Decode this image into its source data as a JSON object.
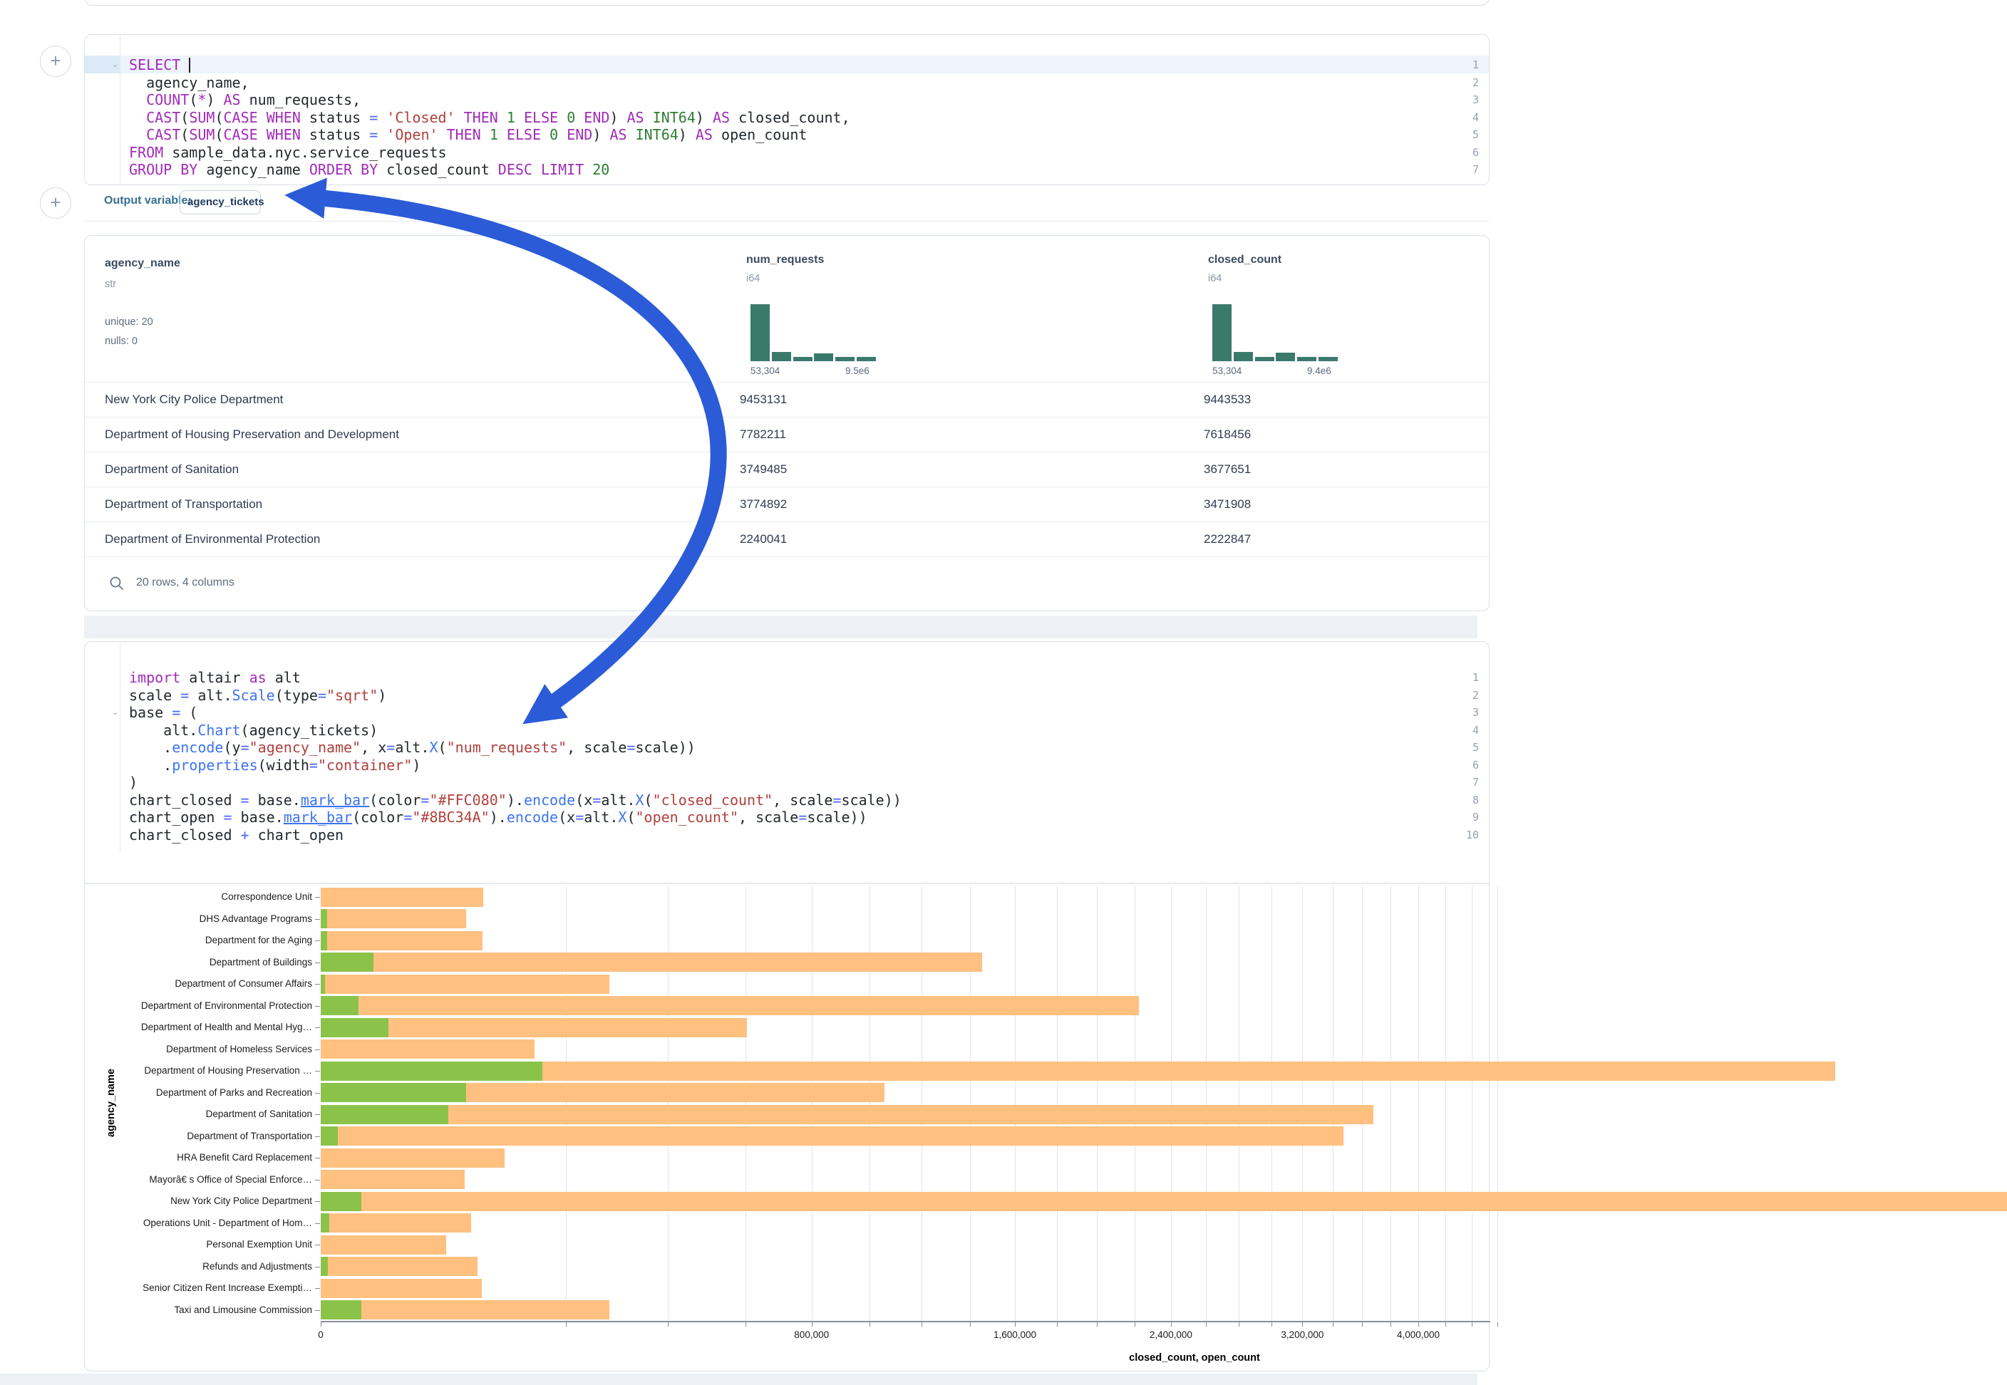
{
  "plus_button_label": "+",
  "sql_cell": {
    "line_numbers": [
      "1",
      "2",
      "3",
      "4",
      "5",
      "6",
      "7"
    ],
    "folded_lines": [
      0
    ],
    "lines": [
      [
        [
          "k",
          "SELECT"
        ],
        [
          "t",
          " "
        ],
        [
          "caret",
          ""
        ]
      ],
      [
        [
          "t",
          "  agency_name,"
        ]
      ],
      [
        [
          "t",
          "  "
        ],
        [
          "k",
          "COUNT"
        ],
        [
          "t",
          "("
        ],
        [
          "k",
          "*"
        ],
        [
          "t",
          ") "
        ],
        [
          "k",
          "AS"
        ],
        [
          "t",
          " num_requests,"
        ]
      ],
      [
        [
          "t",
          "  "
        ],
        [
          "k",
          "CAST"
        ],
        [
          "t",
          "("
        ],
        [
          "k",
          "SUM"
        ],
        [
          "t",
          "("
        ],
        [
          "k",
          "CASE"
        ],
        [
          "t",
          " "
        ],
        [
          "k",
          "WHEN"
        ],
        [
          "t",
          " status "
        ],
        [
          "o",
          "="
        ],
        [
          "t",
          " "
        ],
        [
          "s",
          "'Closed'"
        ],
        [
          "t",
          " "
        ],
        [
          "k",
          "THEN"
        ],
        [
          "t",
          " "
        ],
        [
          "n",
          "1"
        ],
        [
          "t",
          " "
        ],
        [
          "k",
          "ELSE"
        ],
        [
          "t",
          " "
        ],
        [
          "n",
          "0"
        ],
        [
          "t",
          " "
        ],
        [
          "k",
          "END"
        ],
        [
          "t",
          ") "
        ],
        [
          "k",
          "AS"
        ],
        [
          "t",
          " "
        ],
        [
          "n",
          "INT64"
        ],
        [
          "t",
          ") "
        ],
        [
          "k",
          "AS"
        ],
        [
          "t",
          " closed_count,"
        ]
      ],
      [
        [
          "t",
          "  "
        ],
        [
          "k",
          "CAST"
        ],
        [
          "t",
          "("
        ],
        [
          "k",
          "SUM"
        ],
        [
          "t",
          "("
        ],
        [
          "k",
          "CASE"
        ],
        [
          "t",
          " "
        ],
        [
          "k",
          "WHEN"
        ],
        [
          "t",
          " status "
        ],
        [
          "o",
          "="
        ],
        [
          "t",
          " "
        ],
        [
          "s",
          "'Open'"
        ],
        [
          "t",
          " "
        ],
        [
          "k",
          "THEN"
        ],
        [
          "t",
          " "
        ],
        [
          "n",
          "1"
        ],
        [
          "t",
          " "
        ],
        [
          "k",
          "ELSE"
        ],
        [
          "t",
          " "
        ],
        [
          "n",
          "0"
        ],
        [
          "t",
          " "
        ],
        [
          "k",
          "END"
        ],
        [
          "t",
          ") "
        ],
        [
          "k",
          "AS"
        ],
        [
          "t",
          " "
        ],
        [
          "n",
          "INT64"
        ],
        [
          "t",
          ") "
        ],
        [
          "k",
          "AS"
        ],
        [
          "t",
          " open_count"
        ]
      ],
      [
        [
          "k",
          "FROM"
        ],
        [
          "t",
          " sample_data.nyc.service_requests"
        ]
      ],
      [
        [
          "k",
          "GROUP BY"
        ],
        [
          "t",
          " agency_name "
        ],
        [
          "k",
          "ORDER BY"
        ],
        [
          "t",
          " closed_count "
        ],
        [
          "k",
          "DESC"
        ],
        [
          "t",
          " "
        ],
        [
          "k",
          "LIMIT"
        ],
        [
          "t",
          " "
        ],
        [
          "n",
          "20"
        ]
      ]
    ]
  },
  "output_variable": {
    "label": "Output variable:",
    "value": "agency_tickets"
  },
  "table": {
    "columns": [
      {
        "name": "agency_name",
        "type": "str",
        "stats": [
          "unique: 20",
          "nulls: 0"
        ]
      },
      {
        "name": "num_requests",
        "type": "i64",
        "hist": [
          1,
          0.16,
          0.07,
          0.14,
          0.07,
          0.07
        ],
        "min_label": "53,304",
        "max_label": "9.5e6"
      },
      {
        "name": "closed_count",
        "type": "i64",
        "hist": [
          1,
          0.16,
          0.08,
          0.15,
          0.07,
          0.08
        ],
        "min_label": "53,304",
        "max_label": "9.4e6"
      }
    ],
    "rows": [
      [
        "New York City Police Department",
        "9453131",
        "9443533"
      ],
      [
        "Department of Housing Preservation and Development",
        "7782211",
        "7618456"
      ],
      [
        "Department of Sanitation",
        "3749485",
        "3677651"
      ],
      [
        "Department of Transportation",
        "3774892",
        "3471908"
      ],
      [
        "Department of Environmental Protection",
        "2240041",
        "2222847"
      ]
    ],
    "footer": "20 rows, 4 columns"
  },
  "python_cell": {
    "line_numbers": [
      "1",
      "2",
      "3",
      "4",
      "5",
      "6",
      "7",
      "8",
      "9",
      "10"
    ],
    "folded_lines": [
      2
    ],
    "lines": [
      [
        [
          "k",
          "import"
        ],
        [
          "t",
          " altair "
        ],
        [
          "k",
          "as"
        ],
        [
          "t",
          " alt"
        ]
      ],
      [
        [
          "t",
          "scale "
        ],
        [
          "o",
          "="
        ],
        [
          "t",
          " alt."
        ],
        [
          "f",
          "Scale"
        ],
        [
          "t",
          "(type"
        ],
        [
          "o",
          "="
        ],
        [
          "s",
          "\"sqrt\""
        ],
        [
          "t",
          ")"
        ]
      ],
      [
        [
          "t",
          "base "
        ],
        [
          "o",
          "="
        ],
        [
          "t",
          " ("
        ]
      ],
      [
        [
          "t",
          "    alt."
        ],
        [
          "f",
          "Chart"
        ],
        [
          "t",
          "(agency_tickets)"
        ]
      ],
      [
        [
          "t",
          "    ."
        ],
        [
          "f",
          "encode"
        ],
        [
          "t",
          "(y"
        ],
        [
          "o",
          "="
        ],
        [
          "s",
          "\"agency_name\""
        ],
        [
          "t",
          ", x"
        ],
        [
          "o",
          "="
        ],
        [
          "t",
          "alt."
        ],
        [
          "f",
          "X"
        ],
        [
          "t",
          "("
        ],
        [
          "s",
          "\"num_requests\""
        ],
        [
          "t",
          ", scale"
        ],
        [
          "o",
          "="
        ],
        [
          "t",
          "scale))"
        ]
      ],
      [
        [
          "t",
          "    ."
        ],
        [
          "f",
          "properties"
        ],
        [
          "t",
          "(width"
        ],
        [
          "o",
          "="
        ],
        [
          "s",
          "\"container\""
        ],
        [
          "t",
          ")"
        ]
      ],
      [
        [
          "t",
          ")"
        ]
      ],
      [
        [
          "t",
          "chart_closed "
        ],
        [
          "o",
          "="
        ],
        [
          "t",
          " base."
        ],
        [
          "fu",
          "mark_bar"
        ],
        [
          "t",
          "(color"
        ],
        [
          "o",
          "="
        ],
        [
          "s",
          "\"#FFC080\""
        ],
        [
          "t",
          ")."
        ],
        [
          "f",
          "encode"
        ],
        [
          "t",
          "(x"
        ],
        [
          "o",
          "="
        ],
        [
          "t",
          "alt."
        ],
        [
          "f",
          "X"
        ],
        [
          "t",
          "("
        ],
        [
          "s",
          "\"closed_count\""
        ],
        [
          "t",
          ", scale"
        ],
        [
          "o",
          "="
        ],
        [
          "t",
          "scale))"
        ]
      ],
      [
        [
          "t",
          "chart_open "
        ],
        [
          "o",
          "="
        ],
        [
          "t",
          " base."
        ],
        [
          "fu",
          "mark_bar"
        ],
        [
          "t",
          "(color"
        ],
        [
          "o",
          "="
        ],
        [
          "s",
          "\"#8BC34A\""
        ],
        [
          "t",
          ")."
        ],
        [
          "f",
          "encode"
        ],
        [
          "t",
          "(x"
        ],
        [
          "o",
          "="
        ],
        [
          "t",
          "alt."
        ],
        [
          "f",
          "X"
        ],
        [
          "t",
          "("
        ],
        [
          "s",
          "\"open_count\""
        ],
        [
          "t",
          ", scale"
        ],
        [
          "o",
          "="
        ],
        [
          "t",
          "scale))"
        ]
      ],
      [
        [
          "t",
          "chart_closed "
        ],
        [
          "o",
          "+"
        ],
        [
          "t",
          " chart_open"
        ]
      ]
    ]
  },
  "chart_data": {
    "type": "bar",
    "orientation": "horizontal",
    "scale_type": "sqrt",
    "colors": {
      "closed_count": "#FFC080",
      "open_count": "#8BC34A"
    },
    "xlabel": "closed_count, open_count",
    "ylabel": "agency_name",
    "x_major_ticks": [
      0,
      800000,
      1600000,
      2400000,
      3200000,
      4000000
    ],
    "x_major_labels": [
      "0",
      "800,000",
      "1,600,000",
      "2,400,000",
      "3,200,000",
      "4,000,000"
    ],
    "x_minor_step": 200000,
    "x_minor_max": 4600000,
    "agencies": [
      {
        "label": "Correspondence Unit",
        "closed": 88000,
        "open": 0
      },
      {
        "label": "DHS Advantage Programs",
        "closed": 70500,
        "open": 150
      },
      {
        "label": "Department for the Aging",
        "closed": 87000,
        "open": 150
      },
      {
        "label": "Department of Buildings",
        "closed": 1454000,
        "open": 9300
      },
      {
        "label": "Department of Consumer Affairs",
        "closed": 277000,
        "open": 60
      },
      {
        "label": "Department of Environmental Protection",
        "closed": 2222847,
        "open": 4800
      },
      {
        "label": "Department of Health and Mental Hyg…",
        "closed": 603000,
        "open": 15300
      },
      {
        "label": "Department of Homeless Services",
        "closed": 152000,
        "open": 0
      },
      {
        "label": "Department of Housing Preservation …",
        "closed": 7618456,
        "open": 163000
      },
      {
        "label": "Department of Parks and Recreation",
        "closed": 1055000,
        "open": 70500
      },
      {
        "label": "Department of Sanitation",
        "closed": 3677651,
        "open": 54300
      },
      {
        "label": "Department of Transportation",
        "closed": 3471908,
        "open": 1000
      },
      {
        "label": "HRA Benefit Card Replacement",
        "closed": 112000,
        "open": 0
      },
      {
        "label": "Mayorâ€ s Office of Special Enforce…",
        "closed": 69000,
        "open": 0
      },
      {
        "label": "New York City Police Department",
        "closed": 9443533,
        "open": 5400
      },
      {
        "label": "Operations Unit - Department of Hom…",
        "closed": 75000,
        "open": 250
      },
      {
        "label": "Personal Exemption Unit",
        "closed": 52000,
        "open": 0
      },
      {
        "label": "Refunds and Adjustments",
        "closed": 82000,
        "open": 170
      },
      {
        "label": "Senior Citizen Rent Increase Exempti…",
        "closed": 86000,
        "open": 0
      },
      {
        "label": "Taxi and Limousine Commission",
        "closed": 277000,
        "open": 5400
      }
    ]
  },
  "arrow_color": "#2B5BD7"
}
